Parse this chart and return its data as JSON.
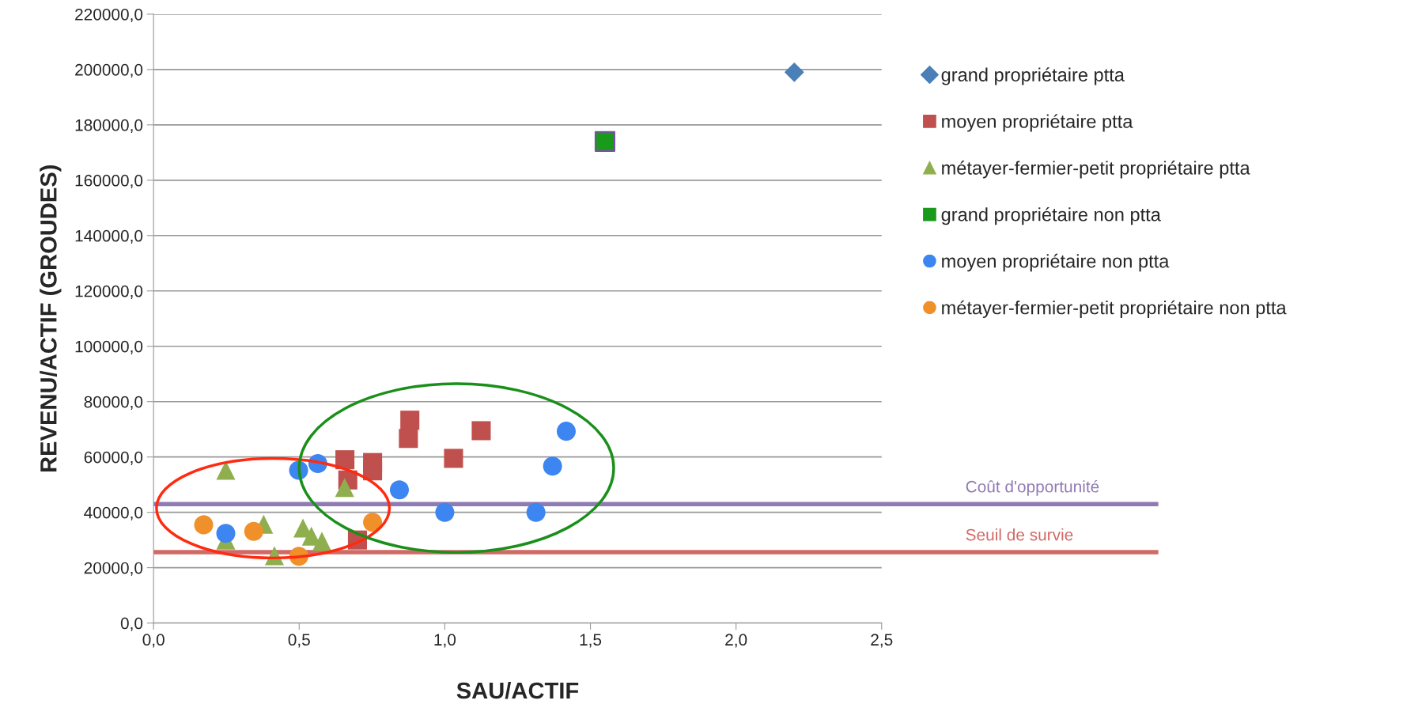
{
  "chart_data": {
    "type": "scatter",
    "xlabel": "SAU/ACTIF",
    "ylabel": "REVENU/ACTIF (GROUDES)",
    "xlim": [
      0,
      2.5
    ],
    "ylim": [
      0,
      220000
    ],
    "xticks": [
      {
        "value": 0,
        "label": "0,0"
      },
      {
        "value": 0.5,
        "label": "0,5"
      },
      {
        "value": 1,
        "label": "1,0"
      },
      {
        "value": 1.5,
        "label": "1,5"
      },
      {
        "value": 2,
        "label": "2,0"
      },
      {
        "value": 2.5,
        "label": "2,5"
      }
    ],
    "yticks": [
      {
        "value": 0,
        "label": "0,0"
      },
      {
        "value": 20000,
        "label": "20000,0"
      },
      {
        "value": 40000,
        "label": "40000,0"
      },
      {
        "value": 60000,
        "label": "60000,0"
      },
      {
        "value": 80000,
        "label": "80000,0"
      },
      {
        "value": 100000,
        "label": "100000,0"
      },
      {
        "value": 120000,
        "label": "120000,0"
      },
      {
        "value": 140000,
        "label": "140000,0"
      },
      {
        "value": 160000,
        "label": "160000,0"
      },
      {
        "value": 180000,
        "label": "180000,0"
      },
      {
        "value": 200000,
        "label": "200000,0"
      },
      {
        "value": 220000,
        "label": "220000,0"
      }
    ],
    "grid": "y",
    "legend": "right",
    "series": [
      {
        "name": "grand propriétaire ptta",
        "color": "#4a7fb8",
        "marker": "diamond",
        "x": [
          2.2
        ],
        "values": [
          199000
        ]
      },
      {
        "name": "moyen propriétaire ptta",
        "color": "#c0504d",
        "marker": "square",
        "x": [
          0.88,
          0.875,
          1.125,
          1.03,
          0.657,
          0.667,
          0.752,
          0.752,
          0.7
        ],
        "values": [
          73300,
          66700,
          69500,
          59500,
          59000,
          51700,
          58000,
          55000,
          30000
        ]
      },
      {
        "name": "métayer-fermier-petit propriétaire ptta",
        "color": "#8faf4f",
        "marker": "triangle",
        "x": [
          0.248,
          0.656,
          0.378,
          0.513,
          0.542,
          0.578,
          0.415,
          0.248
        ],
        "values": [
          55200,
          49000,
          35700,
          34300,
          31400,
          29500,
          24300,
          30000
        ]
      },
      {
        "name": "grand propriétaire non ptta",
        "color": "#1a9a1a",
        "marker": "square",
        "x": [
          1.55
        ],
        "values": [
          174000
        ]
      },
      {
        "name": "moyen propriétaire non ptta",
        "color": "#3d85f0",
        "marker": "circle",
        "x": [
          0.498,
          0.564,
          0.844,
          1.0,
          1.313,
          0.248,
          1.417,
          1.37
        ],
        "values": [
          55200,
          57600,
          48100,
          40000,
          40000,
          32400,
          69300,
          56700
        ]
      },
      {
        "name": "métayer-fermier-petit propriétaire non ptta",
        "color": "#f0902a",
        "marker": "circle",
        "x": [
          0.172,
          0.344,
          0.499,
          0.752
        ],
        "values": [
          35500,
          33100,
          24100,
          36400
        ]
      }
    ],
    "ref_lines": [
      {
        "axis": "y",
        "value": 43000,
        "label": "Coût d'opportunité",
        "color": "#8f7bb3"
      },
      {
        "axis": "y",
        "value": 25600,
        "label": "Seuil de survie",
        "color": "#d06a66"
      }
    ]
  }
}
